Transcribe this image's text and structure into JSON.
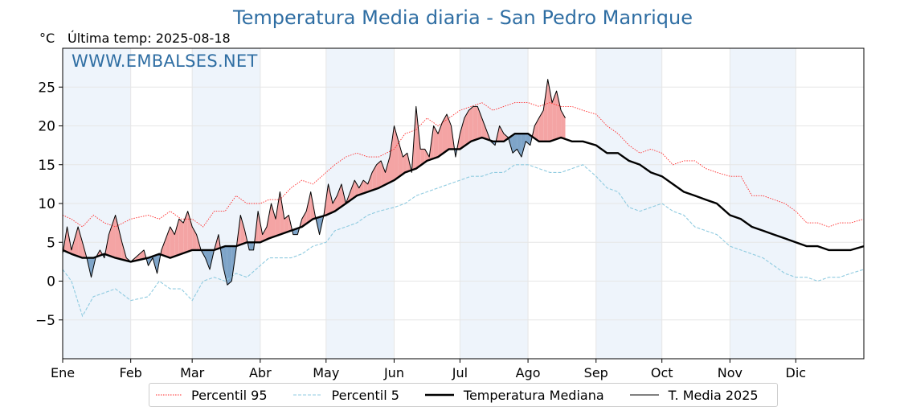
{
  "title": "Temperatura Media diaria - San Pedro Manrique",
  "unit_label": "°C",
  "last_update": "Última temp: 2025-08-18",
  "watermark": "WWW.EMBALSES.NET",
  "colors": {
    "p95": "#ff2a2a",
    "p5": "#8fcbe0",
    "median": "#000000",
    "current": "#000000",
    "above_fill": "#f4a4a4",
    "below_fill": "#7ea4c8",
    "band": "#eef4fb"
  },
  "legend": {
    "p95": "Percentil 95",
    "p5": "Percentil 5",
    "median": "Temperatura Mediana",
    "current": "T. Media 2025"
  },
  "chart_data": {
    "type": "line",
    "x_unit": "day_of_year",
    "xlim": [
      1,
      366
    ],
    "ylim": [
      -10,
      30
    ],
    "yticks": [
      25,
      20,
      15,
      10,
      5,
      0,
      -5
    ],
    "ytick_labels": [
      "25",
      "20",
      "15",
      "10",
      "5",
      "0",
      "−5"
    ],
    "months": [
      {
        "label": "Ene",
        "day": 1
      },
      {
        "label": "Feb",
        "day": 32
      },
      {
        "label": "Mar",
        "day": 60
      },
      {
        "label": "Abr",
        "day": 91
      },
      {
        "label": "May",
        "day": 121
      },
      {
        "label": "Jun",
        "day": 152
      },
      {
        "label": "Jul",
        "day": 182
      },
      {
        "label": "Ago",
        "day": 213
      },
      {
        "label": "Sep",
        "day": 244
      },
      {
        "label": "Oct",
        "day": 274
      },
      {
        "label": "Nov",
        "day": 305
      },
      {
        "label": "Dic",
        "day": 335
      }
    ],
    "grid": true,
    "legend_position": "bottom",
    "series": [
      {
        "name": "Percentil 95",
        "style": "dotted",
        "x": [
          1,
          5,
          10,
          15,
          20,
          25,
          32,
          40,
          45,
          50,
          55,
          60,
          65,
          70,
          75,
          80,
          85,
          91,
          95,
          100,
          105,
          110,
          115,
          121,
          125,
          130,
          135,
          140,
          145,
          152,
          157,
          162,
          167,
          172,
          177,
          182,
          187,
          192,
          197,
          202,
          207,
          213,
          218,
          223,
          228,
          233,
          238,
          244,
          249,
          254,
          259,
          264,
          269,
          274,
          279,
          284,
          289,
          294,
          299,
          305,
          310,
          315,
          320,
          325,
          330,
          335,
          340,
          345,
          350,
          355,
          360,
          366
        ],
        "y": [
          8.5,
          8,
          7,
          8.5,
          7.5,
          7,
          8,
          8.5,
          8,
          9,
          8,
          8,
          7,
          9,
          9,
          11,
          10,
          10,
          10.5,
          10.5,
          12,
          13,
          12.5,
          14,
          15,
          16,
          16.5,
          16,
          16,
          17,
          19,
          19.5,
          21,
          20,
          21,
          22,
          22.5,
          23,
          22,
          22.5,
          23,
          23,
          22.5,
          23,
          22.5,
          22.5,
          22,
          21.5,
          20,
          19,
          17.5,
          16.5,
          17,
          16.5,
          15,
          15.5,
          15.5,
          14.5,
          14,
          13.5,
          13.5,
          11,
          11,
          10.5,
          10,
          9,
          7.5,
          7.5,
          7,
          7.5,
          7.5,
          8
        ]
      },
      {
        "name": "Percentil 5",
        "style": "dashed",
        "x": [
          1,
          5,
          10,
          15,
          20,
          25,
          32,
          40,
          45,
          50,
          55,
          60,
          65,
          70,
          75,
          80,
          85,
          91,
          95,
          100,
          105,
          110,
          115,
          121,
          125,
          130,
          135,
          140,
          145,
          152,
          157,
          162,
          167,
          172,
          177,
          182,
          187,
          192,
          197,
          202,
          207,
          213,
          218,
          223,
          228,
          233,
          238,
          244,
          249,
          254,
          259,
          264,
          269,
          274,
          279,
          284,
          289,
          294,
          299,
          305,
          310,
          315,
          320,
          325,
          330,
          335,
          340,
          345,
          350,
          355,
          360,
          366
        ],
        "y": [
          1.5,
          0,
          -4.5,
          -2,
          -1.5,
          -1,
          -2.5,
          -2,
          0,
          -1,
          -1,
          -2.5,
          0,
          0.5,
          0,
          1,
          0.5,
          2,
          3,
          3,
          3,
          3.5,
          4.5,
          5,
          6.5,
          7,
          7.5,
          8.5,
          9,
          9.5,
          10,
          11,
          11.5,
          12,
          12.5,
          13,
          13.5,
          13.5,
          14,
          14,
          15,
          15,
          14.5,
          14,
          14,
          14.5,
          15,
          13.5,
          12,
          11.5,
          9.5,
          9,
          9.5,
          10,
          9,
          8.5,
          7,
          6.5,
          6,
          4.5,
          4,
          3.5,
          3,
          2,
          1,
          0.5,
          0.5,
          0,
          0.5,
          0.5,
          1,
          1.5
        ]
      },
      {
        "name": "Temperatura Mediana",
        "style": "solid-bold",
        "x": [
          1,
          5,
          10,
          15,
          20,
          25,
          32,
          40,
          45,
          50,
          55,
          60,
          65,
          70,
          75,
          80,
          85,
          91,
          95,
          100,
          105,
          110,
          115,
          121,
          125,
          130,
          135,
          140,
          145,
          152,
          157,
          162,
          167,
          172,
          177,
          182,
          187,
          192,
          197,
          202,
          207,
          213,
          218,
          223,
          228,
          233,
          238,
          244,
          249,
          254,
          259,
          264,
          269,
          274,
          279,
          284,
          289,
          294,
          299,
          305,
          310,
          315,
          320,
          325,
          330,
          335,
          340,
          345,
          350,
          355,
          360,
          366
        ],
        "y": [
          4,
          3.5,
          3,
          3,
          3.5,
          3,
          2.5,
          3,
          3.5,
          3,
          3.5,
          4,
          4,
          4,
          4.5,
          4.5,
          5,
          5,
          5.5,
          6,
          6.5,
          7,
          8,
          8.5,
          9,
          10,
          11,
          11.5,
          12,
          13,
          14,
          14.5,
          15.5,
          16,
          17,
          17,
          18,
          18.5,
          18,
          18,
          19,
          19,
          18,
          18,
          18.5,
          18,
          18,
          17.5,
          16.5,
          16.5,
          15.5,
          15,
          14,
          13.5,
          12.5,
          11.5,
          11,
          10.5,
          10,
          8.5,
          8,
          7,
          6.5,
          6,
          5.5,
          5,
          4.5,
          4.5,
          4,
          4,
          4,
          4.5
        ]
      },
      {
        "name": "T. Media 2025",
        "style": "solid-thin",
        "x": [
          1,
          3,
          5,
          8,
          10,
          12,
          14,
          16,
          18,
          20,
          22,
          25,
          28,
          30,
          32,
          34,
          36,
          38,
          40,
          42,
          44,
          46,
          48,
          50,
          52,
          54,
          56,
          58,
          60,
          62,
          64,
          66,
          68,
          70,
          72,
          74,
          76,
          78,
          80,
          82,
          84,
          86,
          88,
          90,
          92,
          94,
          96,
          98,
          100,
          102,
          104,
          106,
          108,
          110,
          112,
          114,
          116,
          118,
          120,
          122,
          124,
          126,
          128,
          130,
          132,
          134,
          136,
          138,
          140,
          142,
          144,
          146,
          148,
          150,
          152,
          154,
          156,
          158,
          160,
          162,
          164,
          166,
          168,
          170,
          172,
          174,
          176,
          178,
          180,
          182,
          184,
          186,
          188,
          190,
          192,
          194,
          196,
          198,
          200,
          202,
          204,
          206,
          208,
          210,
          212,
          214,
          216,
          218,
          220,
          222,
          224,
          226,
          228,
          230
        ],
        "y": [
          3.5,
          7,
          4,
          7,
          5,
          3,
          0.5,
          3,
          4,
          3,
          6,
          8.5,
          5,
          3,
          2.5,
          3,
          3.5,
          4,
          2,
          3,
          1,
          4,
          5.5,
          7,
          6,
          8,
          7.5,
          9,
          7,
          6,
          4,
          3,
          1.5,
          4,
          6,
          2,
          -0.5,
          0,
          4,
          8.5,
          6.5,
          4,
          4,
          9,
          6,
          7,
          10,
          8,
          11.5,
          8,
          8.5,
          6,
          6,
          8,
          9,
          11.5,
          8.5,
          6,
          8.5,
          12.5,
          10,
          11,
          12.5,
          10,
          11.5,
          13,
          12,
          13,
          12.5,
          14,
          15,
          15.5,
          14,
          16,
          20,
          18,
          16,
          16.5,
          14,
          22.5,
          17,
          17,
          16,
          20,
          19,
          20.5,
          21.5,
          20,
          16,
          19,
          21,
          22,
          22.5,
          22.5,
          21,
          19.5,
          18,
          17.5,
          20,
          19,
          18.5,
          16.5,
          17,
          16,
          18,
          17.5,
          20,
          21,
          22,
          26,
          23,
          24.5,
          22,
          21
        ]
      }
    ]
  }
}
